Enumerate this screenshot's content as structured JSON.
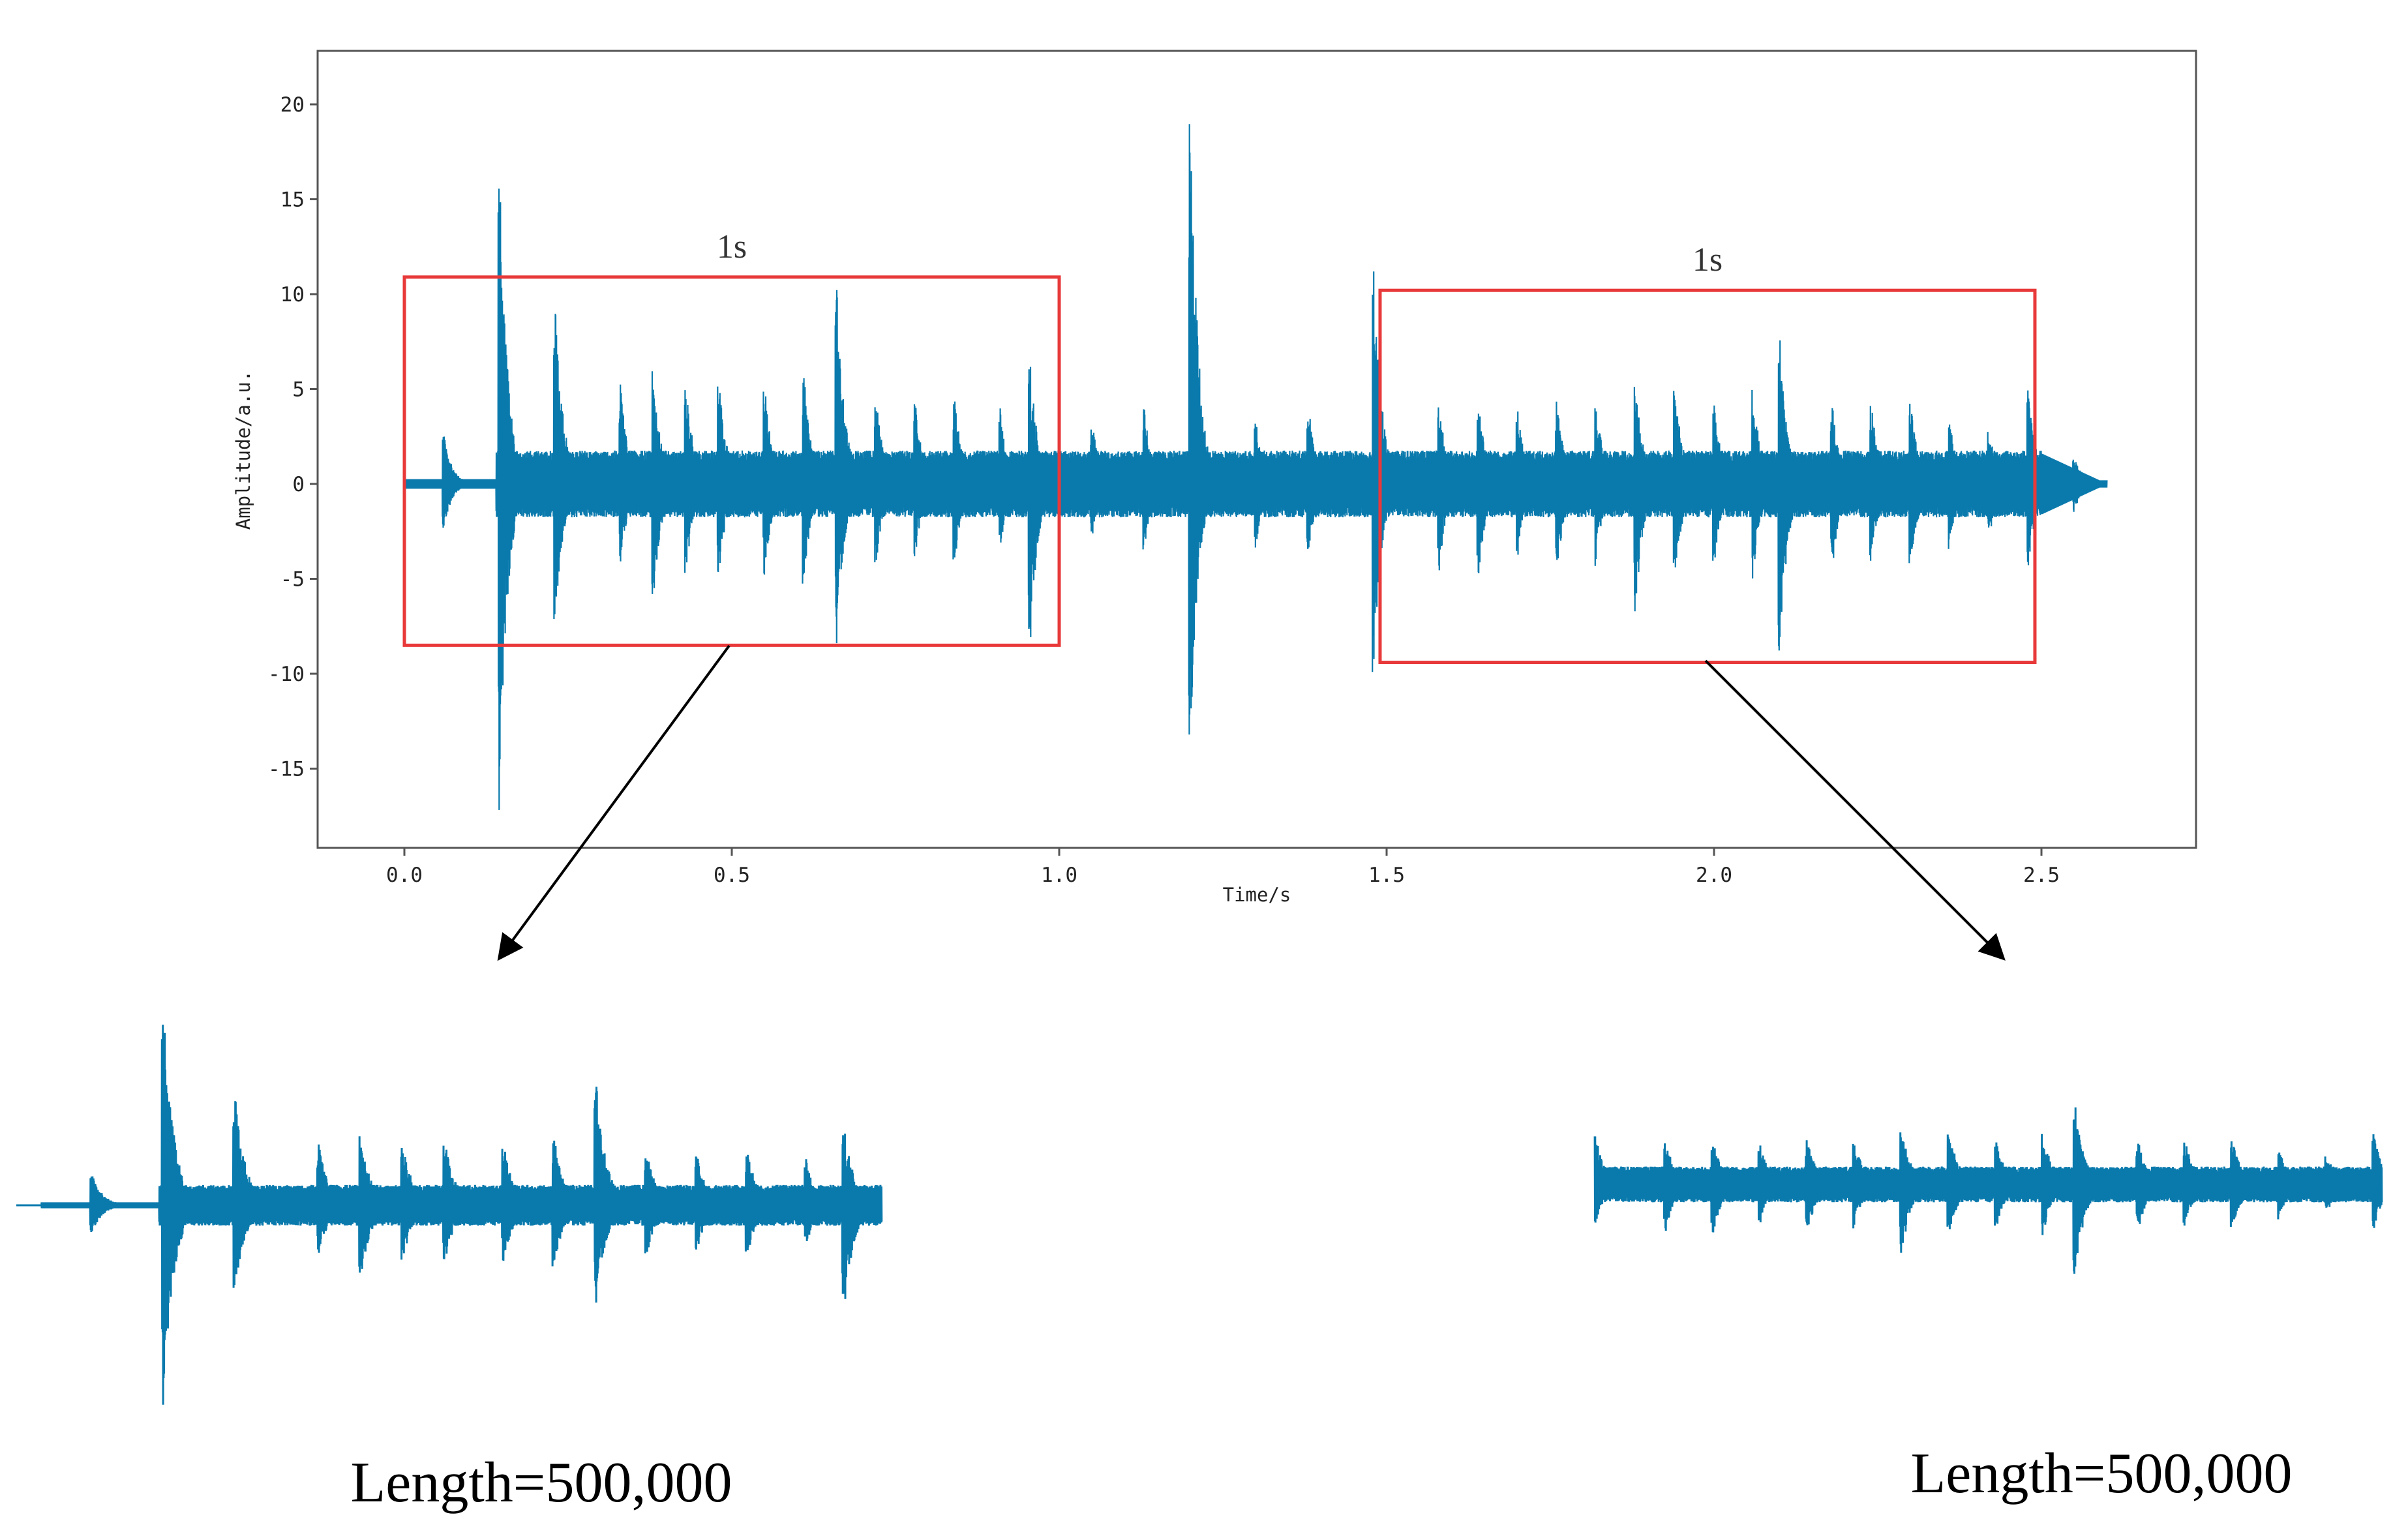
{
  "colors": {
    "wave": "#0a7aad",
    "box": "#e8393a",
    "arrow": "#000000",
    "axis": "#555555"
  },
  "chart_data": {
    "type": "line",
    "xlabel": "Time/s",
    "ylabel": "Amplitude/a.u.",
    "xlim": [
      -0.13,
      2.73
    ],
    "ylim": [
      -19.5,
      22.5
    ],
    "xticks": [
      "0.0",
      "0.5",
      "1.0",
      "1.5",
      "2.0",
      "2.5"
    ],
    "yticks": [
      "-15",
      "-10",
      "-5",
      "0",
      "5",
      "10",
      "15",
      "20"
    ],
    "signal": {
      "start": 0.0,
      "end": 2.6,
      "quiet_until": 0.14,
      "baseline_amplitude": 1.6,
      "transients": [
        {
          "t": 0.06,
          "up": 2.8,
          "down": -2.5
        },
        {
          "t": 0.145,
          "up": 17.5,
          "down": -17.5
        },
        {
          "t": 0.23,
          "up": 10.3,
          "down": -8.0
        },
        {
          "t": 0.33,
          "up": 5.5,
          "down": -4.5
        },
        {
          "t": 0.38,
          "up": 6.0,
          "down": -6.5
        },
        {
          "t": 0.43,
          "up": 5.5,
          "down": -5.0
        },
        {
          "t": 0.48,
          "up": 5.8,
          "down": -5.2
        },
        {
          "t": 0.55,
          "up": 5.5,
          "down": -5.0
        },
        {
          "t": 0.61,
          "up": 6.0,
          "down": -5.5
        },
        {
          "t": 0.66,
          "up": 10.9,
          "down": -8.5
        },
        {
          "t": 0.72,
          "up": 5.0,
          "down": -4.5
        },
        {
          "t": 0.78,
          "up": 4.5,
          "down": -4.0
        },
        {
          "t": 0.84,
          "up": 5.0,
          "down": -4.5
        },
        {
          "t": 0.91,
          "up": 4.0,
          "down": -3.5
        },
        {
          "t": 0.955,
          "up": 7.0,
          "down": -9.3
        },
        {
          "t": 1.05,
          "up": 3.5,
          "down": -3.0
        },
        {
          "t": 1.13,
          "up": 4.0,
          "down": -3.5
        },
        {
          "t": 1.2,
          "up": 20.8,
          "down": -14.2
        },
        {
          "t": 1.3,
          "up": 3.5,
          "down": -3.5
        },
        {
          "t": 1.38,
          "up": 4.5,
          "down": -4.0
        },
        {
          "t": 1.48,
          "up": 12.3,
          "down": -10.0
        },
        {
          "t": 1.58,
          "up": 4.5,
          "down": -5.0
        },
        {
          "t": 1.64,
          "up": 4.5,
          "down": -5.5
        },
        {
          "t": 1.7,
          "up": 4.0,
          "down": -4.0
        },
        {
          "t": 1.76,
          "up": 4.5,
          "down": -5.0
        },
        {
          "t": 1.82,
          "up": 4.5,
          "down": -4.5
        },
        {
          "t": 1.88,
          "up": 5.5,
          "down": -7.2
        },
        {
          "t": 1.94,
          "up": 5.5,
          "down": -5.5
        },
        {
          "t": 2.0,
          "up": 4.5,
          "down": -4.5
        },
        {
          "t": 2.06,
          "up": 5.0,
          "down": -5.0
        },
        {
          "t": 2.1,
          "up": 8.3,
          "down": -9.7
        },
        {
          "t": 2.18,
          "up": 4.5,
          "down": -5.0
        },
        {
          "t": 2.24,
          "up": 4.5,
          "down": -4.5
        },
        {
          "t": 2.3,
          "up": 4.5,
          "down": -5.0
        },
        {
          "t": 2.36,
          "up": 3.5,
          "down": -3.5
        },
        {
          "t": 2.42,
          "up": 3.0,
          "down": -3.0
        },
        {
          "t": 2.48,
          "up": 5.0,
          "down": -4.5
        },
        {
          "t": 2.55,
          "up": 1.5,
          "down": -1.5
        }
      ]
    },
    "windows": [
      {
        "label": "1s",
        "x_range": [
          0.0,
          1.0
        ],
        "y_range": [
          -8.5,
          10.9
        ],
        "caption": "Length=500,000"
      },
      {
        "label": "1s",
        "x_range": [
          1.49,
          2.49
        ],
        "y_range": [
          -9.4,
          10.2
        ],
        "caption": "Length=500,000"
      }
    ]
  }
}
